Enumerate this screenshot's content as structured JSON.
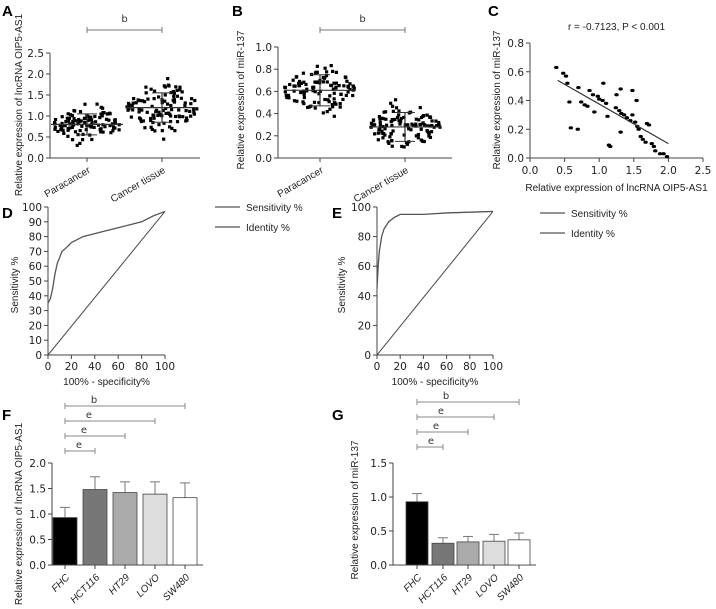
{
  "chart_data": [
    {
      "panel": "A",
      "type": "scatter",
      "ylabel": "Relative expression of lncRNA OIP5-AS1",
      "ylim": [
        0,
        2.5
      ],
      "yticks": [
        "0.0",
        "0.5",
        "1.0",
        "1.5",
        "2.0",
        "2.5"
      ],
      "categories": [
        "Paracancer",
        "Cancer tissue"
      ],
      "groups": [
        {
          "mean": 0.8,
          "sd": 0.25,
          "min": 0.2,
          "max": 1.35,
          "n": 110
        },
        {
          "mean": 1.2,
          "sd": 0.35,
          "min": 0.35,
          "max": 1.9,
          "n": 110
        }
      ],
      "significance": [
        {
          "from": 0,
          "to": 1,
          "label": "b"
        }
      ]
    },
    {
      "panel": "B",
      "type": "scatter",
      "ylabel": "Relative expression of miR-137",
      "ylim": [
        0,
        1.0
      ],
      "yticks": [
        "0.0",
        "0.2",
        "0.4",
        "0.6",
        "0.8",
        "1.0"
      ],
      "categories": [
        "Paracancer",
        "Cancer tissue"
      ],
      "groups": [
        {
          "mean": 0.61,
          "sd": 0.14,
          "min": 0.26,
          "max": 0.9,
          "n": 110
        },
        {
          "mean": 0.28,
          "sd": 0.13,
          "min": 0.0,
          "max": 0.62,
          "n": 110
        }
      ],
      "significance": [
        {
          "from": 0,
          "to": 1,
          "label": "b"
        }
      ]
    },
    {
      "panel": "C",
      "type": "scatter",
      "title": "r = -0.7123, P < 0.001",
      "xlabel": "Relative expression of lncRNA OIP5-AS1",
      "ylabel": "Relative expression of miR-137",
      "xlim": [
        0,
        2.5
      ],
      "ylim": [
        0,
        0.8
      ],
      "xticks": [
        "0.0",
        "0.5",
        "1.0",
        "1.5",
        "2.0",
        "2.5"
      ],
      "yticks": [
        "0.0",
        "0.2",
        "0.4",
        "0.6",
        "0.8"
      ],
      "points": [
        [
          0.38,
          0.63
        ],
        [
          0.48,
          0.59
        ],
        [
          0.52,
          0.57
        ],
        [
          0.54,
          0.52
        ],
        [
          0.57,
          0.39
        ],
        [
          0.59,
          0.21
        ],
        [
          0.69,
          0.2
        ],
        [
          0.7,
          0.49
        ],
        [
          0.74,
          0.39
        ],
        [
          0.79,
          0.37
        ],
        [
          0.83,
          0.36
        ],
        [
          0.86,
          0.47
        ],
        [
          0.91,
          0.44
        ],
        [
          0.93,
          0.32
        ],
        [
          0.98,
          0.43
        ],
        [
          1.0,
          0.41
        ],
        [
          1.05,
          0.4
        ],
        [
          1.06,
          0.52
        ],
        [
          1.1,
          0.38
        ],
        [
          1.12,
          0.29
        ],
        [
          1.14,
          0.09
        ],
        [
          1.16,
          0.08
        ],
        [
          1.24,
          0.35
        ],
        [
          1.25,
          0.44
        ],
        [
          1.29,
          0.33
        ],
        [
          1.31,
          0.48
        ],
        [
          1.32,
          0.31
        ],
        [
          1.31,
          0.18
        ],
        [
          1.36,
          0.3
        ],
        [
          1.4,
          0.28
        ],
        [
          1.45,
          0.26
        ],
        [
          1.48,
          0.47
        ],
        [
          1.48,
          0.3
        ],
        [
          1.52,
          0.25
        ],
        [
          1.54,
          0.4
        ],
        [
          1.55,
          0.22
        ],
        [
          1.57,
          0.2
        ],
        [
          1.6,
          0.15
        ],
        [
          1.63,
          0.13
        ],
        [
          1.67,
          0.11
        ],
        [
          1.69,
          0.24
        ],
        [
          1.72,
          0.23
        ],
        [
          1.76,
          0.1
        ],
        [
          1.79,
          0.08
        ],
        [
          1.81,
          0.05
        ],
        [
          1.88,
          0.03
        ],
        [
          1.93,
          0.03
        ],
        [
          1.98,
          0.01
        ]
      ],
      "fit": [
        [
          0.4,
          0.54
        ],
        [
          2.0,
          0.1
        ]
      ]
    },
    {
      "panel": "D",
      "type": "line",
      "xlabel": "100% - specificity%",
      "ylabel": "Sensitivity %",
      "xlim": [
        0,
        100
      ],
      "ylim": [
        0,
        100
      ],
      "xticks": [
        "0",
        "20",
        "40",
        "60",
        "80",
        "100"
      ],
      "yticks": [
        "0",
        "10",
        "20",
        "30",
        "40",
        "50",
        "60",
        "70",
        "80",
        "90",
        "100"
      ],
      "legend": [
        "Sensitivity %",
        "Identity %"
      ],
      "roc": [
        [
          0,
          35
        ],
        [
          2,
          38
        ],
        [
          4,
          45
        ],
        [
          6,
          55
        ],
        [
          8,
          62
        ],
        [
          10,
          66
        ],
        [
          12,
          70
        ],
        [
          15,
          72
        ],
        [
          20,
          76
        ],
        [
          25,
          78
        ],
        [
          30,
          80
        ],
        [
          40,
          82
        ],
        [
          50,
          84
        ],
        [
          60,
          86
        ],
        [
          70,
          88
        ],
        [
          80,
          90
        ],
        [
          90,
          94
        ],
        [
          100,
          97
        ]
      ],
      "identity": [
        [
          0,
          0
        ],
        [
          100,
          97
        ]
      ]
    },
    {
      "panel": "E",
      "type": "line",
      "xlabel": "100% - specificity%",
      "ylabel": "Sensitivity %",
      "xlim": [
        0,
        100
      ],
      "ylim": [
        0,
        100
      ],
      "xticks": [
        "0",
        "20",
        "40",
        "60",
        "80",
        "100"
      ],
      "yticks": [
        "0",
        "20",
        "40",
        "60",
        "80",
        "100"
      ],
      "legend": [
        "Sensitivity %",
        "Identity %"
      ],
      "roc": [
        [
          0,
          45
        ],
        [
          1,
          60
        ],
        [
          2,
          70
        ],
        [
          4,
          80
        ],
        [
          6,
          85
        ],
        [
          10,
          90
        ],
        [
          15,
          93
        ],
        [
          20,
          95
        ],
        [
          40,
          95
        ],
        [
          60,
          96
        ],
        [
          100,
          97
        ]
      ],
      "identity": [
        [
          0,
          0
        ],
        [
          100,
          97
        ]
      ]
    },
    {
      "panel": "F",
      "type": "bar",
      "ylabel": "Relative expression of lncRNA OIP5-AS1",
      "ylim": [
        0,
        2.0
      ],
      "yticks": [
        "0.0",
        "0.5",
        "1.0",
        "1.5",
        "2.0"
      ],
      "categories": [
        "FHC",
        "HCT116",
        "HT29",
        "LOVO",
        "SW480"
      ],
      "values": [
        0.93,
        1.48,
        1.42,
        1.39,
        1.32
      ],
      "errors": [
        0.2,
        0.25,
        0.21,
        0.24,
        0.29
      ],
      "colors": [
        "#000000",
        "#777777",
        "#aaaaaa",
        "#dddddd",
        "#ffffff"
      ],
      "significance": [
        {
          "from": 0,
          "to": 1,
          "label": "e"
        },
        {
          "from": 0,
          "to": 2,
          "label": "e"
        },
        {
          "from": 0,
          "to": 3,
          "label": "e"
        },
        {
          "from": 0,
          "to": 4,
          "label": "b"
        }
      ]
    },
    {
      "panel": "G",
      "type": "bar",
      "ylabel": "Relative expression of miR-137",
      "ylim": [
        0,
        1.5
      ],
      "yticks": [
        "0.0",
        "0.5",
        "1.0",
        "1.5"
      ],
      "categories": [
        "FHC",
        "HCT116",
        "HT29",
        "LOVO",
        "SW480"
      ],
      "values": [
        0.93,
        0.32,
        0.34,
        0.35,
        0.37
      ],
      "errors": [
        0.12,
        0.08,
        0.08,
        0.1,
        0.1
      ],
      "colors": [
        "#000000",
        "#777777",
        "#aaaaaa",
        "#dddddd",
        "#ffffff"
      ],
      "significance": [
        {
          "from": 0,
          "to": 1,
          "label": "e"
        },
        {
          "from": 0,
          "to": 2,
          "label": "e"
        },
        {
          "from": 0,
          "to": 3,
          "label": "e"
        },
        {
          "from": 0,
          "to": 4,
          "label": "b"
        }
      ]
    }
  ]
}
